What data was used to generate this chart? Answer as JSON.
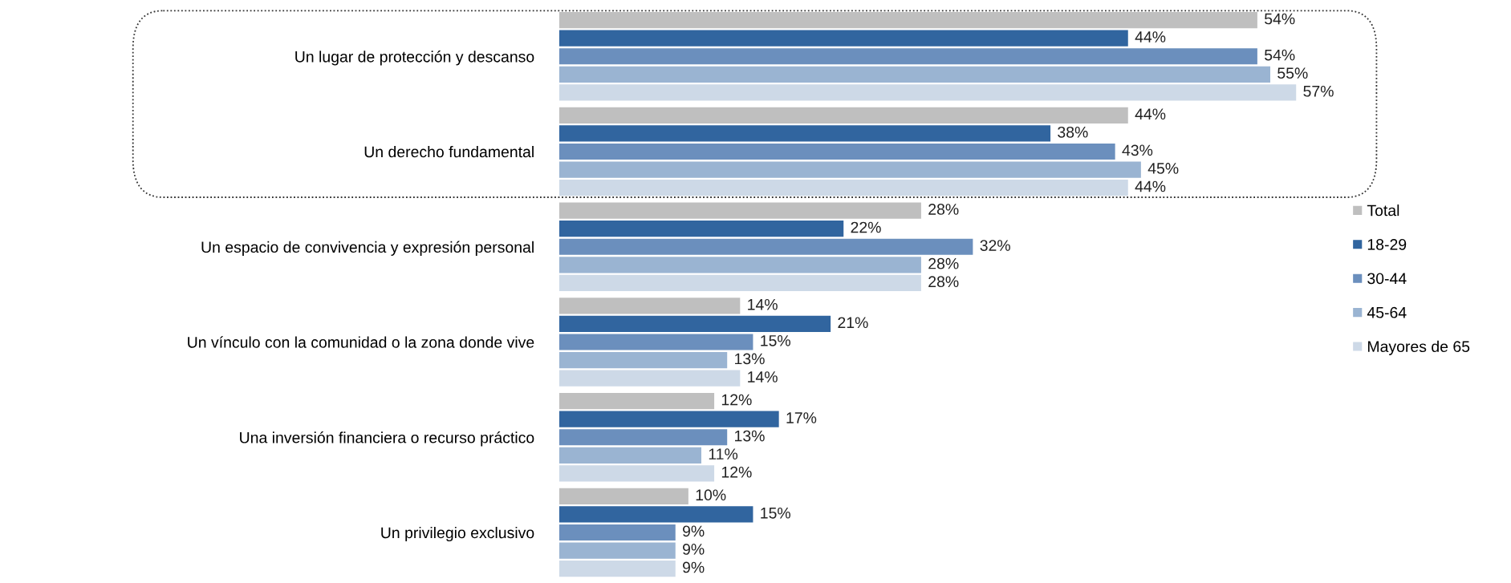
{
  "chart_data": {
    "type": "bar",
    "orientation": "horizontal",
    "categories": [
      "Un lugar de protección y descanso",
      "Un derecho fundamental",
      "Un espacio de convivencia y expresión personal",
      "Un vínculo con la comunidad o la zona donde vive",
      "Una inversión financiera o recurso práctico",
      "Un privilegio exclusivo"
    ],
    "series": [
      {
        "name": "Total",
        "color": "#bfbfbf",
        "values": [
          54,
          44,
          28,
          14,
          12,
          10
        ],
        "value_labels": [
          "54%",
          "44%",
          "28%",
          "14%",
          "12%",
          "10%"
        ]
      },
      {
        "name": "18-29",
        "color": "#31659f",
        "values": [
          44,
          38,
          22,
          21,
          17,
          15
        ],
        "value_labels": [
          "44%",
          "38%",
          "22%",
          "21%",
          "17%",
          "15%"
        ]
      },
      {
        "name": "30-44",
        "color": "#6b8fbd",
        "values": [
          54,
          43,
          32,
          15,
          13,
          9
        ],
        "value_labels": [
          "54%",
          "43%",
          "32%",
          "15%",
          "13%",
          "9%"
        ]
      },
      {
        "name": "45-64",
        "color": "#9ab4d2",
        "values": [
          55,
          45,
          28,
          13,
          11,
          9
        ],
        "value_labels": [
          "55%",
          "45%",
          "28%",
          "13%",
          "11%",
          "9%"
        ]
      },
      {
        "name": "Mayores de 65",
        "color": "#cdd9e7",
        "values": [
          57,
          44,
          28,
          14,
          12,
          9
        ],
        "value_labels": [
          "57%",
          "44%",
          "28%",
          "14%",
          "12%",
          "9%"
        ]
      }
    ],
    "legend": "right",
    "grid": false,
    "tick_labels": "y"
  }
}
